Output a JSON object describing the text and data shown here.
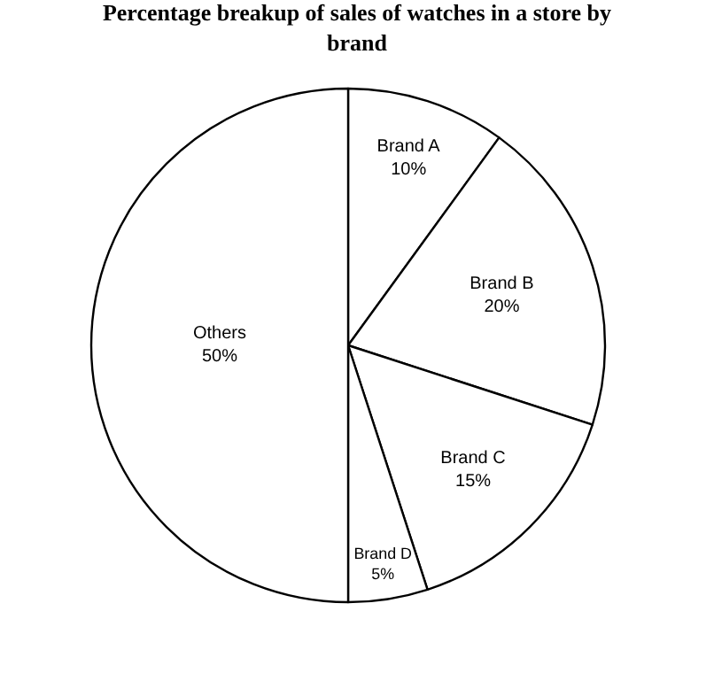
{
  "chart_data": {
    "type": "pie",
    "title": "Percentage breakup of sales of watches in a store by brand",
    "categories": [
      "Brand A",
      "Brand B",
      "Brand C",
      "Brand D",
      "Others"
    ],
    "values": [
      10,
      20,
      15,
      5,
      50
    ],
    "value_labels": [
      "10%",
      "20%",
      "15%",
      "5%",
      "50%"
    ],
    "colors": [
      "#ffffff",
      "#ffffff",
      "#ffffff",
      "#ffffff",
      "#ffffff"
    ],
    "legend": false
  }
}
